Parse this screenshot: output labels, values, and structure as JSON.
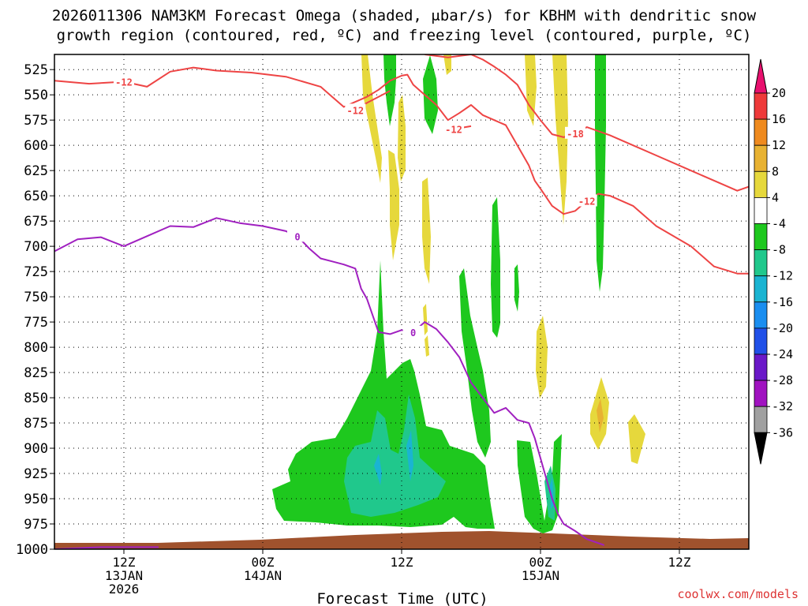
{
  "title_line1": "2026011306 NAM3KM Forecast Omega (shaded, μbar/s) for KBHM with dendritic snow",
  "title_line2": "growth region (contoured, red, ºC) and freezing level (contoured, purple, ºC)",
  "credit": "coolwx.com/models",
  "chart_data": {
    "type": "time-height cross section",
    "xlabel": "Forecast Time (UTC)",
    "x_hours_range": [
      0,
      60
    ],
    "x_ticks": [
      {
        "hour": 6,
        "lines": [
          "12Z",
          "13JAN",
          "2026"
        ]
      },
      {
        "hour": 18,
        "lines": [
          "00Z",
          "14JAN"
        ]
      },
      {
        "hour": 30,
        "lines": [
          "12Z"
        ]
      },
      {
        "hour": 42,
        "lines": [
          "00Z",
          "15JAN"
        ]
      },
      {
        "hour": 54,
        "lines": [
          "12Z"
        ]
      }
    ],
    "ylabel": "",
    "y_axis": "pressure (hPa), inverted",
    "ylim": [
      1000,
      510
    ],
    "y_ticks": [
      "525",
      "550",
      "575",
      "600",
      "625",
      "650",
      "675",
      "700",
      "725",
      "750",
      "775",
      "800",
      "825",
      "850",
      "875",
      "900",
      "925",
      "950",
      "975",
      "1000"
    ],
    "grid": "dotted",
    "colorbar": {
      "labels": [
        "20",
        "16",
        "12",
        "8",
        "4",
        "-4",
        "-8",
        "-12",
        "-16",
        "-20",
        "-24",
        "-28",
        "-32",
        "-36"
      ],
      "colors": [
        "#e8106e",
        "#ee3a3a",
        "#ef8a1e",
        "#e8b232",
        "#e6d83c",
        "#ffffff",
        "#1ec81e",
        "#20c88c",
        "#1ab4d2",
        "#1a8ef0",
        "#2050e8",
        "#6a18c8",
        "#a012c0",
        "#a0a0a0",
        "#000000"
      ]
    },
    "series": [
      {
        "name": "-12",
        "color": "#ee4444",
        "x_hours": [
          0,
          3,
          6,
          8,
          10,
          12,
          14,
          17,
          20,
          23,
          24,
          25,
          26,
          27,
          28,
          29,
          30,
          30.5,
          31,
          32,
          33,
          34,
          35,
          36,
          37,
          38,
          39,
          40,
          41,
          41.5,
          42,
          43,
          44,
          45,
          46,
          47,
          48,
          50,
          52,
          55,
          57,
          59,
          60
        ],
        "y_hpa": [
          536,
          539,
          537,
          542,
          527,
          523,
          526,
          528,
          532,
          542,
          552,
          562,
          557,
          552,
          545,
          536,
          531,
          530,
          540,
          550,
          560,
          575,
          568,
          560,
          570,
          575,
          580,
          600,
          620,
          635,
          643,
          660,
          668,
          665,
          655,
          648,
          650,
          660,
          680,
          700,
          720,
          727,
          727
        ]
      },
      {
        "name": "-12",
        "color": "#ee4444",
        "x_hours": [
          26,
          27,
          28,
          29
        ],
        "y_hpa": [
          565,
          558,
          552,
          546
        ]
      },
      {
        "name": "-12",
        "color": "#ee4444",
        "x_hours": [
          34,
          34.5,
          35,
          36
        ],
        "y_hpa": [
          584,
          584,
          583,
          581
        ]
      },
      {
        "name": "-18",
        "color": "#ee4444",
        "x_hours": [
          32,
          34,
          36,
          37,
          38,
          39,
          40,
          41,
          42,
          43,
          44,
          45,
          46,
          48,
          50,
          52,
          55,
          58,
          59,
          60
        ],
        "y_hpa": [
          510,
          513,
          510,
          515,
          522,
          530,
          540,
          560,
          575,
          589,
          592,
          588,
          582,
          590,
          600,
          610,
          625,
          640,
          645,
          641
        ]
      },
      {
        "name": "0",
        "color": "#a020c0",
        "x_hours": [
          0,
          2,
          4,
          6,
          8,
          10,
          12,
          14,
          16,
          18,
          20,
          21,
          22,
          23,
          24,
          25,
          26,
          26.5,
          27,
          28,
          29,
          30,
          31,
          32,
          33,
          34,
          35,
          36,
          37,
          38,
          39,
          40,
          41,
          41.5,
          42,
          42.5,
          43,
          43.5,
          44,
          45,
          46,
          47,
          47.5
        ],
        "y_hpa": [
          705,
          693,
          691,
          700,
          690,
          680,
          681,
          672,
          677,
          680,
          685,
          690,
          702,
          712,
          715,
          718,
          722,
          742,
          752,
          785,
          787,
          783,
          785,
          775,
          782,
          795,
          810,
          835,
          850,
          865,
          860,
          872,
          875,
          890,
          910,
          930,
          950,
          965,
          975,
          982,
          990,
          994,
          996
        ]
      },
      {
        "name": "0",
        "color": "#a020c0",
        "x_hours": [
          0,
          2,
          4,
          6,
          8,
          9
        ],
        "y_hpa": [
          1000,
          999,
          998,
          998,
          998,
          998
        ]
      }
    ]
  }
}
